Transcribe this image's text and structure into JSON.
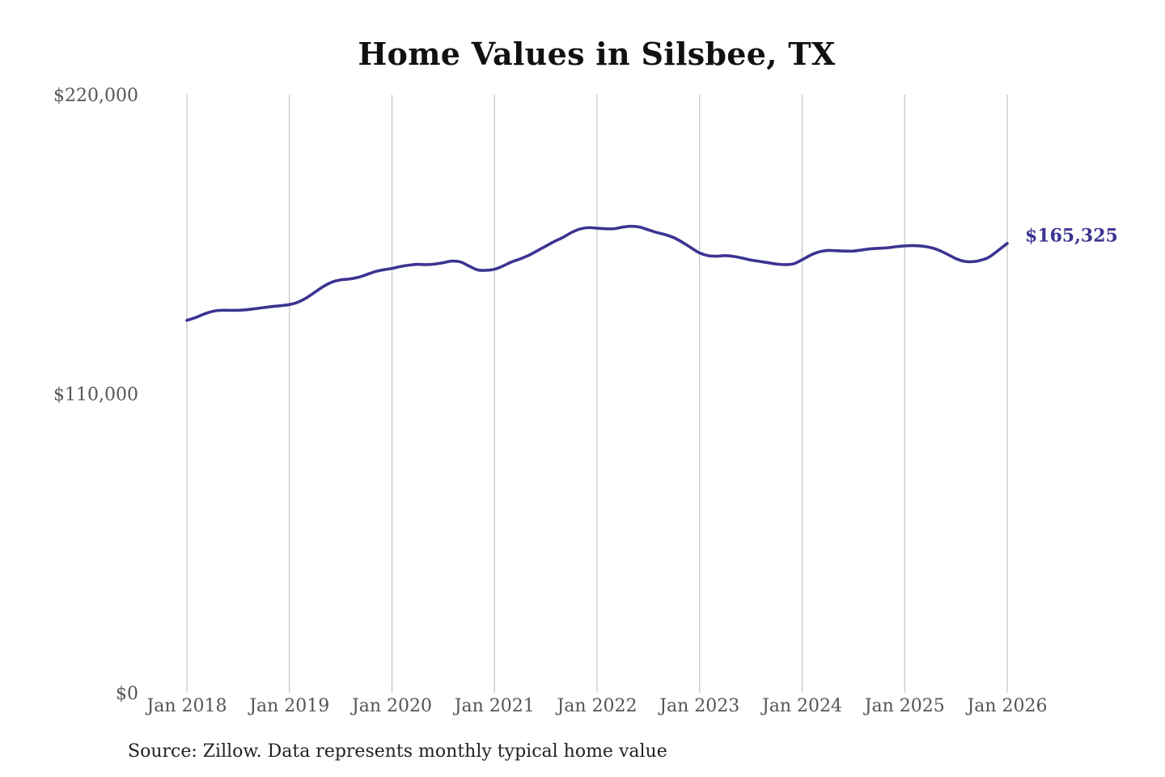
{
  "chart_data": {
    "type": "line",
    "title": "Home Values in Silsbee, TX",
    "xlabel": "",
    "ylabel": "",
    "ylim": [
      0,
      220000
    ],
    "y_ticks": [
      {
        "value": 0,
        "label": "$0"
      },
      {
        "value": 110000,
        "label": "$110,000"
      },
      {
        "value": 220000,
        "label": "$220,000"
      }
    ],
    "x_ticks": [
      {
        "value": 2018,
        "label": "Jan 2018"
      },
      {
        "value": 2019,
        "label": "Jan 2019"
      },
      {
        "value": 2020,
        "label": "Jan 2020"
      },
      {
        "value": 2021,
        "label": "Jan 2021"
      },
      {
        "value": 2022,
        "label": "Jan 2022"
      },
      {
        "value": 2023,
        "label": "Jan 2023"
      },
      {
        "value": 2024,
        "label": "Jan 2024"
      },
      {
        "value": 2025,
        "label": "Jan 2025"
      },
      {
        "value": 2026,
        "label": "Jan 2026"
      }
    ],
    "xlim": [
      2018,
      2026
    ],
    "grid": "vertical",
    "legend": "none",
    "line_color": "#3b3491",
    "end_label": "$165,325",
    "series": [
      {
        "points": [
          [
            2018.0,
            137000
          ],
          [
            2018.083,
            138000
          ],
          [
            2018.167,
            139300
          ],
          [
            2018.25,
            140300
          ],
          [
            2018.333,
            140700
          ],
          [
            2018.417,
            140700
          ],
          [
            2018.5,
            140700
          ],
          [
            2018.583,
            140900
          ],
          [
            2018.667,
            141300
          ],
          [
            2018.75,
            141700
          ],
          [
            2018.833,
            142100
          ],
          [
            2018.917,
            142400
          ],
          [
            2019.0,
            142800
          ],
          [
            2019.083,
            143700
          ],
          [
            2019.167,
            145300
          ],
          [
            2019.25,
            147400
          ],
          [
            2019.333,
            149500
          ],
          [
            2019.417,
            151100
          ],
          [
            2019.5,
            151900
          ],
          [
            2019.583,
            152200
          ],
          [
            2019.667,
            152800
          ],
          [
            2019.75,
            153800
          ],
          [
            2019.833,
            154900
          ],
          [
            2019.917,
            155600
          ],
          [
            2020.0,
            156100
          ],
          [
            2020.083,
            156800
          ],
          [
            2020.167,
            157300
          ],
          [
            2020.25,
            157600
          ],
          [
            2020.333,
            157500
          ],
          [
            2020.417,
            157700
          ],
          [
            2020.5,
            158200
          ],
          [
            2020.583,
            158800
          ],
          [
            2020.667,
            158500
          ],
          [
            2020.75,
            157000
          ],
          [
            2020.833,
            155600
          ],
          [
            2020.917,
            155400
          ],
          [
            2021.0,
            155800
          ],
          [
            2021.083,
            157000
          ],
          [
            2021.167,
            158500
          ],
          [
            2021.25,
            159600
          ],
          [
            2021.333,
            160900
          ],
          [
            2021.417,
            162600
          ],
          [
            2021.5,
            164300
          ],
          [
            2021.583,
            166000
          ],
          [
            2021.667,
            167500
          ],
          [
            2021.75,
            169300
          ],
          [
            2021.833,
            170600
          ],
          [
            2021.917,
            171100
          ],
          [
            2022.0,
            170900
          ],
          [
            2022.083,
            170700
          ],
          [
            2022.167,
            170700
          ],
          [
            2022.25,
            171300
          ],
          [
            2022.333,
            171600
          ],
          [
            2022.417,
            171300
          ],
          [
            2022.5,
            170300
          ],
          [
            2022.583,
            169300
          ],
          [
            2022.667,
            168500
          ],
          [
            2022.75,
            167400
          ],
          [
            2022.833,
            165700
          ],
          [
            2022.917,
            163700
          ],
          [
            2023.0,
            161800
          ],
          [
            2023.083,
            160800
          ],
          [
            2023.167,
            160600
          ],
          [
            2023.25,
            160800
          ],
          [
            2023.333,
            160500
          ],
          [
            2023.417,
            159900
          ],
          [
            2023.5,
            159200
          ],
          [
            2023.583,
            158700
          ],
          [
            2023.667,
            158200
          ],
          [
            2023.75,
            157700
          ],
          [
            2023.833,
            157500
          ],
          [
            2023.917,
            157800
          ],
          [
            2024.0,
            159300
          ],
          [
            2024.083,
            161000
          ],
          [
            2024.167,
            162200
          ],
          [
            2024.25,
            162700
          ],
          [
            2024.333,
            162600
          ],
          [
            2024.417,
            162500
          ],
          [
            2024.5,
            162500
          ],
          [
            2024.583,
            162900
          ],
          [
            2024.667,
            163300
          ],
          [
            2024.75,
            163500
          ],
          [
            2024.833,
            163700
          ],
          [
            2024.917,
            164100
          ],
          [
            2025.0,
            164400
          ],
          [
            2025.083,
            164500
          ],
          [
            2025.167,
            164300
          ],
          [
            2025.25,
            163800
          ],
          [
            2025.333,
            162800
          ],
          [
            2025.417,
            161300
          ],
          [
            2025.5,
            159700
          ],
          [
            2025.583,
            158700
          ],
          [
            2025.667,
            158600
          ],
          [
            2025.75,
            159200
          ],
          [
            2025.833,
            160500
          ],
          [
            2026.0,
            165325
          ]
        ]
      }
    ],
    "source": "Source: Zillow. Data represents monthly typical home value"
  }
}
